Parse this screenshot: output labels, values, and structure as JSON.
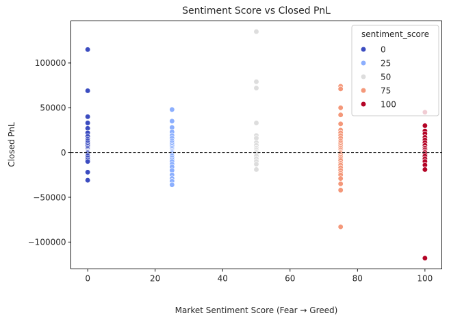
{
  "chart_data": {
    "type": "scatter",
    "title": "Sentiment Score vs Closed PnL",
    "xlabel": "Market Sentiment Score (Fear → Greed)",
    "ylabel": "Closed PnL",
    "xlim": [
      -5,
      105
    ],
    "ylim": [
      -130000,
      147000
    ],
    "xticks": [
      0,
      20,
      40,
      60,
      80,
      100
    ],
    "yticks": [
      -100000,
      -50000,
      0,
      50000,
      100000
    ],
    "grid": false,
    "reference_line": {
      "y": 0,
      "style": "dashed",
      "color": "#000000"
    },
    "legend": {
      "title": "sentiment_score",
      "placement": "top-right",
      "entries": [
        {
          "label": "0",
          "color": "#3b4cc0"
        },
        {
          "label": "25",
          "color": "#8caffe"
        },
        {
          "label": "50",
          "color": "#dddddd"
        },
        {
          "label": "75",
          "color": "#f4987a"
        },
        {
          "label": "100",
          "color": "#b40426"
        }
      ]
    },
    "series": [
      {
        "name": "0",
        "color": "#3b4cc0",
        "x": 0,
        "y": [
          115000,
          69000,
          40000,
          33000,
          27000,
          22000,
          18000,
          15000,
          13000,
          11000,
          9000,
          7000,
          5000,
          3500,
          2000,
          1000,
          500,
          0,
          -1000,
          -2500,
          -4000,
          -6000,
          -8000,
          -10000,
          -22000,
          -31000
        ]
      },
      {
        "name": "25",
        "color": "#8caffe",
        "x": 25,
        "y": [
          48000,
          35000,
          28000,
          23000,
          19000,
          16000,
          13000,
          11000,
          9000,
          7000,
          5000,
          3500,
          2000,
          1000,
          0,
          -1000,
          -2500,
          -4000,
          -6000,
          -8000,
          -10000,
          -13000,
          -16000,
          -20000,
          -25000,
          -29000,
          -32000,
          -36000
        ]
      },
      {
        "name": "50",
        "color": "#dddddd",
        "x": 50,
        "y": [
          135000,
          79000,
          72000,
          33000,
          19000,
          16000,
          11000,
          8000,
          5000,
          3000,
          1000,
          0,
          -2000,
          -4000,
          -7000,
          -10000,
          -13000,
          -19000
        ]
      },
      {
        "name": "75",
        "color": "#f4987a",
        "x": 75,
        "y": [
          74000,
          71000,
          50000,
          42000,
          32000,
          25000,
          22000,
          19000,
          16000,
          13000,
          11000,
          9000,
          7000,
          5000,
          3000,
          1000,
          0,
          -1000,
          -3000,
          -5000,
          -7000,
          -9000,
          -12000,
          -14000,
          -17000,
          -20000,
          -23000,
          -25000,
          -29000,
          -35000,
          -42000,
          -83000
        ]
      },
      {
        "name": "100",
        "color": "#b40426",
        "x": 100,
        "y": [
          45000,
          30000,
          24000,
          21000,
          17000,
          14000,
          11000,
          8000,
          5000,
          3000,
          1000,
          0,
          -2000,
          -4000,
          -7000,
          -10000,
          -14000,
          -19000,
          -118000
        ]
      }
    ]
  }
}
